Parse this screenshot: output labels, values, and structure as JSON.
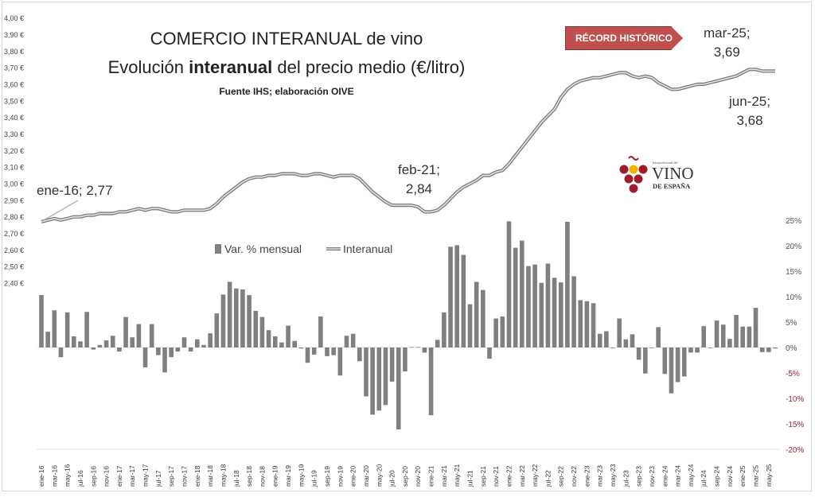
{
  "title_line1": "COMERCIO INTERANUAL de vino",
  "title_line2_pre": "Evolución ",
  "title_line2_bold": "interanual",
  "title_line2_post": " del precio medio (€/litro)",
  "source": "Fuente IHS; elaboración OIVE",
  "badge": "RÉCORD HISTÓRICO",
  "logo": {
    "small": "Interprofesional del",
    "main": "VINO",
    "sub": "DE ESPAÑA",
    "colors": {
      "grape": "#a01c2c",
      "gold": "#f2b400"
    }
  },
  "annotations": {
    "start": "ene-16; 2,77",
    "feb21_a": "feb-21;",
    "feb21_b": "2,84",
    "mar25_a": "mar-25;",
    "mar25_b": "3,69",
    "jun25_a": "jun-25;",
    "jun25_b": "3,68"
  },
  "chart_data": {
    "type": "bar+line",
    "legend": {
      "bar": "Var. % mensual",
      "line": "Interanual",
      "placement": "center"
    },
    "left_axis": {
      "ticks": [
        "2,40 €",
        "2,50 €",
        "2,60 €",
        "2,70 €",
        "2,80 €",
        "2,90 €",
        "3,00 €",
        "3,10 €",
        "3,20 €",
        "3,30 €",
        "3,40 €",
        "3,50 €",
        "3,60 €",
        "3,70 €",
        "3,80 €",
        "3,90 €",
        "4,00 €"
      ],
      "range": [
        2.4,
        4.0
      ]
    },
    "right_axis": {
      "ticks": [
        "-20%",
        "-15%",
        "-10%",
        "-5%",
        "0%",
        "5%",
        "10%",
        "15%",
        "20%",
        "25%"
      ],
      "range": [
        -20,
        25
      ],
      "negative_color": "#9b2335",
      "positive_color": "#555555"
    },
    "colors": {
      "bar": "#7f7f7f",
      "line": "#8a8a8a"
    },
    "categories": [
      "ene-16",
      "feb-16",
      "mar-16",
      "abr-16",
      "may-16",
      "jun-16",
      "jul-16",
      "ago-16",
      "sep-16",
      "oct-16",
      "nov-16",
      "dic-16",
      "ene-17",
      "feb-17",
      "mar-17",
      "abr-17",
      "may-17",
      "jun-17",
      "jul-17",
      "ago-17",
      "sep-17",
      "oct-17",
      "nov-17",
      "dic-17",
      "ene-18",
      "feb-18",
      "mar-18",
      "abr-18",
      "may-18",
      "jun-18",
      "jul-18",
      "ago-18",
      "sep-18",
      "oct-18",
      "nov-18",
      "dic-18",
      "ene-19",
      "feb-19",
      "mar-19",
      "abr-19",
      "may-19",
      "jun-19",
      "jul-19",
      "ago-19",
      "sep-19",
      "oct-19",
      "nov-19",
      "dic-19",
      "ene-20",
      "feb-20",
      "mar-20",
      "abr-20",
      "may-20",
      "jun-20",
      "jul-20",
      "ago-20",
      "sep-20",
      "oct-20",
      "nov-20",
      "dic-20",
      "ene-21",
      "feb-21",
      "mar-21",
      "abr-21",
      "may-21",
      "jun-21",
      "jul-21",
      "ago-21",
      "sep-21",
      "oct-21",
      "nov-21",
      "dic-21",
      "ene-22",
      "feb-22",
      "mar-22",
      "abr-22",
      "may-22",
      "jun-22",
      "jul-22",
      "ago-22",
      "sep-22",
      "oct-22",
      "nov-22",
      "dic-22",
      "ene-23",
      "feb-23",
      "mar-23",
      "abr-23",
      "may-23",
      "jun-23",
      "jul-23",
      "ago-23",
      "sep-23",
      "oct-23",
      "nov-23",
      "dic-23",
      "ene-24",
      "feb-24",
      "mar-24",
      "abr-24",
      "may-24",
      "jun-24",
      "jul-24",
      "ago-24",
      "sep-24",
      "oct-24",
      "nov-24",
      "dic-24",
      "ene-25",
      "feb-25",
      "mar-25",
      "abr-25",
      "may-25",
      "jun-25"
    ],
    "monthly_var_pct": [
      10.3,
      3.1,
      7.3,
      -1.9,
      6.9,
      2.2,
      1.2,
      7.0,
      -0.4,
      0.5,
      1.4,
      2.3,
      -0.8,
      6.0,
      2.0,
      4.6,
      -3.9,
      4.6,
      -1.5,
      -4.9,
      -1.9,
      -0.8,
      2.0,
      -0.8,
      1.6,
      0.5,
      2.8,
      6.7,
      10.4,
      12.9,
      11.6,
      11.4,
      10.3,
      7.2,
      6.0,
      3.4,
      2.2,
      1.0,
      4.3,
      1.3,
      -0.2,
      -3.0,
      -1.4,
      6.1,
      -1.7,
      -1.5,
      -5.5,
      2.3,
      2.7,
      -2.7,
      -9.6,
      -13.2,
      -12.4,
      -11.3,
      -6.7,
      -16.1,
      -4.7,
      0.1,
      0.1,
      -1.0,
      -13.3,
      1.5,
      6.9,
      19.8,
      20.1,
      18.2,
      8.5,
      12.9,
      11.3,
      -2.2,
      5.7,
      6.1,
      24.8,
      19.6,
      21.0,
      16.0,
      16.3,
      12.7,
      16.5,
      13.7,
      12.8,
      24.7,
      14.0,
      9.3,
      9.1,
      8.7,
      2.7,
      3.2,
      0.0,
      5.7,
      1.6,
      2.6,
      -2.4,
      -5.1,
      -0.1,
      4.0,
      -5.2,
      -9.0,
      -6.8,
      -5.7,
      -1.0,
      -1.0,
      4.2,
      0.0,
      5.3,
      4.5,
      1.7,
      6.4,
      4.1,
      4.1,
      7.8,
      -0.9,
      -0.9,
      -0.2
    ],
    "interanual_eur_litro": [
      2.77,
      2.78,
      2.79,
      2.78,
      2.79,
      2.8,
      2.8,
      2.81,
      2.81,
      2.82,
      2.82,
      2.82,
      2.83,
      2.83,
      2.84,
      2.85,
      2.84,
      2.85,
      2.85,
      2.84,
      2.83,
      2.83,
      2.84,
      2.84,
      2.84,
      2.84,
      2.85,
      2.88,
      2.92,
      2.95,
      2.98,
      3.01,
      3.03,
      3.04,
      3.04,
      3.05,
      3.05,
      3.06,
      3.06,
      3.06,
      3.05,
      3.05,
      3.06,
      3.06,
      3.05,
      3.04,
      3.05,
      3.05,
      3.05,
      3.03,
      2.99,
      2.95,
      2.92,
      2.89,
      2.87,
      2.87,
      2.87,
      2.87,
      2.86,
      2.83,
      2.83,
      2.84,
      2.87,
      2.91,
      2.95,
      2.98,
      3.0,
      3.02,
      3.05,
      3.05,
      3.07,
      3.08,
      3.12,
      3.17,
      3.22,
      3.27,
      3.32,
      3.37,
      3.41,
      3.45,
      3.52,
      3.57,
      3.6,
      3.62,
      3.63,
      3.64,
      3.64,
      3.65,
      3.66,
      3.67,
      3.67,
      3.65,
      3.64,
      3.65,
      3.64,
      3.61,
      3.59,
      3.57,
      3.57,
      3.58,
      3.59,
      3.6,
      3.6,
      3.61,
      3.62,
      3.63,
      3.64,
      3.65,
      3.67,
      3.69,
      3.69,
      3.68,
      3.68,
      3.68
    ]
  }
}
